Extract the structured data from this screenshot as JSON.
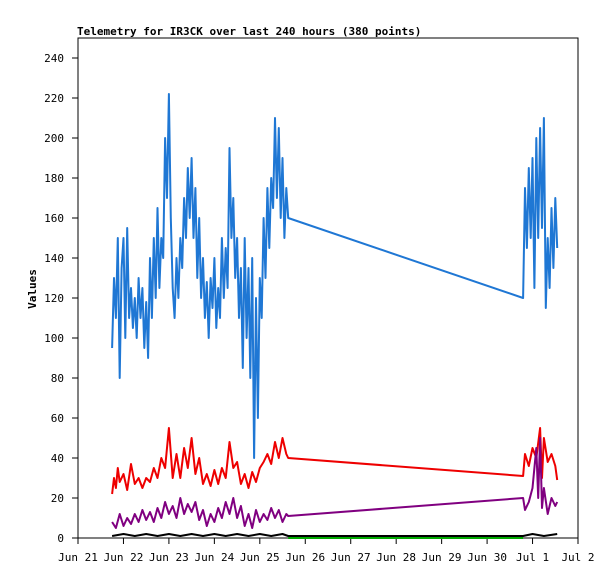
{
  "chart_data": {
    "type": "line",
    "title": "Telemetry for IR3CK over last 240 hours (380 points)",
    "xlabel": "",
    "ylabel": "Values",
    "ylim": [
      0,
      250
    ],
    "yticks": [
      0,
      20,
      40,
      60,
      80,
      100,
      120,
      140,
      160,
      180,
      200,
      220,
      240
    ],
    "xlim": [
      "2023-06-21",
      "2023-07-02"
    ],
    "xticks": [
      "Jun 21",
      "Jun 22",
      "Jun 23",
      "Jun 24",
      "Jun 25",
      "Jun 26",
      "Jun 27",
      "Jun 28",
      "Jun 29",
      "Jun 30",
      "Jul 1",
      "Jul 2"
    ],
    "grid": false,
    "legend": "none",
    "series": [
      {
        "color": "#1f77d4",
        "points": [
          [
            "2023-06-21T18:00",
            95
          ],
          [
            "2023-06-21T19:00",
            130
          ],
          [
            "2023-06-21T20:00",
            110
          ],
          [
            "2023-06-21T21:00",
            150
          ],
          [
            "2023-06-21T22:00",
            80
          ],
          [
            "2023-06-21T23:00",
            135
          ],
          [
            "2023-06-22T00:00",
            150
          ],
          [
            "2023-06-22T01:00",
            100
          ],
          [
            "2023-06-22T02:00",
            155
          ],
          [
            "2023-06-22T03:00",
            110
          ],
          [
            "2023-06-22T04:00",
            125
          ],
          [
            "2023-06-22T05:00",
            105
          ],
          [
            "2023-06-22T06:00",
            120
          ],
          [
            "2023-06-22T07:00",
            100
          ],
          [
            "2023-06-22T08:00",
            130
          ],
          [
            "2023-06-22T09:00",
            110
          ],
          [
            "2023-06-22T10:00",
            125
          ],
          [
            "2023-06-22T11:00",
            95
          ],
          [
            "2023-06-22T12:00",
            118
          ],
          [
            "2023-06-22T13:00",
            90
          ],
          [
            "2023-06-22T14:00",
            140
          ],
          [
            "2023-06-22T15:00",
            110
          ],
          [
            "2023-06-22T16:00",
            150
          ],
          [
            "2023-06-22T17:00",
            120
          ],
          [
            "2023-06-22T18:00",
            165
          ],
          [
            "2023-06-22T19:00",
            125
          ],
          [
            "2023-06-22T20:00",
            150
          ],
          [
            "2023-06-22T21:00",
            140
          ],
          [
            "2023-06-22T22:00",
            200
          ],
          [
            "2023-06-22T23:00",
            170
          ],
          [
            "2023-06-23T00:00",
            222
          ],
          [
            "2023-06-23T01:00",
            160
          ],
          [
            "2023-06-23T02:00",
            125
          ],
          [
            "2023-06-23T03:00",
            110
          ],
          [
            "2023-06-23T04:00",
            140
          ],
          [
            "2023-06-23T05:00",
            120
          ],
          [
            "2023-06-23T06:00",
            150
          ],
          [
            "2023-06-23T07:00",
            135
          ],
          [
            "2023-06-23T08:00",
            170
          ],
          [
            "2023-06-23T09:00",
            150
          ],
          [
            "2023-06-23T10:00",
            185
          ],
          [
            "2023-06-23T11:00",
            160
          ],
          [
            "2023-06-23T12:00",
            190
          ],
          [
            "2023-06-23T13:00",
            150
          ],
          [
            "2023-06-23T14:00",
            175
          ],
          [
            "2023-06-23T15:00",
            130
          ],
          [
            "2023-06-23T16:00",
            160
          ],
          [
            "2023-06-23T17:00",
            120
          ],
          [
            "2023-06-23T18:00",
            140
          ],
          [
            "2023-06-23T19:00",
            110
          ],
          [
            "2023-06-23T20:00",
            128
          ],
          [
            "2023-06-23T21:00",
            100
          ],
          [
            "2023-06-23T22:00",
            130
          ],
          [
            "2023-06-23T23:00",
            115
          ],
          [
            "2023-06-24T00:00",
            140
          ],
          [
            "2023-06-24T01:00",
            105
          ],
          [
            "2023-06-24T02:00",
            125
          ],
          [
            "2023-06-24T03:00",
            110
          ],
          [
            "2023-06-24T04:00",
            150
          ],
          [
            "2023-06-24T05:00",
            120
          ],
          [
            "2023-06-24T06:00",
            145
          ],
          [
            "2023-06-24T07:00",
            125
          ],
          [
            "2023-06-24T08:00",
            195
          ],
          [
            "2023-06-24T09:00",
            150
          ],
          [
            "2023-06-24T10:00",
            170
          ],
          [
            "2023-06-24T11:00",
            130
          ],
          [
            "2023-06-24T12:00",
            150
          ],
          [
            "2023-06-24T13:00",
            110
          ],
          [
            "2023-06-24T14:00",
            135
          ],
          [
            "2023-06-24T15:00",
            85
          ],
          [
            "2023-06-24T16:00",
            150
          ],
          [
            "2023-06-24T17:00",
            100
          ],
          [
            "2023-06-24T18:00",
            135
          ],
          [
            "2023-06-24T19:00",
            80
          ],
          [
            "2023-06-24T20:00",
            140
          ],
          [
            "2023-06-24T21:00",
            40
          ],
          [
            "2023-06-24T22:00",
            120
          ],
          [
            "2023-06-24T23:00",
            60
          ],
          [
            "2023-06-25T00:00",
            130
          ],
          [
            "2023-06-25T01:00",
            110
          ],
          [
            "2023-06-25T02:00",
            160
          ],
          [
            "2023-06-25T03:00",
            130
          ],
          [
            "2023-06-25T04:00",
            175
          ],
          [
            "2023-06-25T05:00",
            145
          ],
          [
            "2023-06-25T06:00",
            180
          ],
          [
            "2023-06-25T07:00",
            165
          ],
          [
            "2023-06-25T08:00",
            210
          ],
          [
            "2023-06-25T09:00",
            170
          ],
          [
            "2023-06-25T10:00",
            205
          ],
          [
            "2023-06-25T11:00",
            160
          ],
          [
            "2023-06-25T12:00",
            190
          ],
          [
            "2023-06-25T13:00",
            150
          ],
          [
            "2023-06-25T14:00",
            175
          ],
          [
            "2023-06-25T15:00",
            160
          ],
          [
            "2023-06-30T19:00",
            120
          ],
          [
            "2023-06-30T20:00",
            175
          ],
          [
            "2023-06-30T21:00",
            145
          ],
          [
            "2023-06-30T22:00",
            185
          ],
          [
            "2023-06-30T23:00",
            150
          ],
          [
            "2023-07-01T00:00",
            190
          ],
          [
            "2023-07-01T01:00",
            125
          ],
          [
            "2023-07-01T02:00",
            200
          ],
          [
            "2023-07-01T03:00",
            150
          ],
          [
            "2023-07-01T04:00",
            205
          ],
          [
            "2023-07-01T05:00",
            155
          ],
          [
            "2023-07-01T06:00",
            210
          ],
          [
            "2023-07-01T07:00",
            115
          ],
          [
            "2023-07-01T08:00",
            150
          ],
          [
            "2023-07-01T09:00",
            125
          ],
          [
            "2023-07-01T10:00",
            165
          ],
          [
            "2023-07-01T11:00",
            135
          ],
          [
            "2023-07-01T12:00",
            170
          ],
          [
            "2023-07-01T13:00",
            145
          ]
        ]
      },
      {
        "color": "#ee0000",
        "points": [
          [
            "2023-06-21T18:00",
            22
          ],
          [
            "2023-06-21T19:00",
            30
          ],
          [
            "2023-06-21T20:00",
            25
          ],
          [
            "2023-06-21T21:00",
            35
          ],
          [
            "2023-06-21T22:00",
            28
          ],
          [
            "2023-06-22T00:00",
            32
          ],
          [
            "2023-06-22T02:00",
            24
          ],
          [
            "2023-06-22T04:00",
            37
          ],
          [
            "2023-06-22T06:00",
            27
          ],
          [
            "2023-06-22T08:00",
            30
          ],
          [
            "2023-06-22T10:00",
            25
          ],
          [
            "2023-06-22T12:00",
            30
          ],
          [
            "2023-06-22T14:00",
            28
          ],
          [
            "2023-06-22T16:00",
            35
          ],
          [
            "2023-06-22T18:00",
            30
          ],
          [
            "2023-06-22T20:00",
            40
          ],
          [
            "2023-06-22T22:00",
            35
          ],
          [
            "2023-06-23T00:00",
            55
          ],
          [
            "2023-06-23T02:00",
            30
          ],
          [
            "2023-06-23T04:00",
            42
          ],
          [
            "2023-06-23T06:00",
            30
          ],
          [
            "2023-06-23T08:00",
            45
          ],
          [
            "2023-06-23T10:00",
            35
          ],
          [
            "2023-06-23T12:00",
            50
          ],
          [
            "2023-06-23T14:00",
            32
          ],
          [
            "2023-06-23T16:00",
            40
          ],
          [
            "2023-06-23T18:00",
            27
          ],
          [
            "2023-06-23T20:00",
            32
          ],
          [
            "2023-06-23T22:00",
            26
          ],
          [
            "2023-06-24T00:00",
            34
          ],
          [
            "2023-06-24T02:00",
            27
          ],
          [
            "2023-06-24T04:00",
            35
          ],
          [
            "2023-06-24T06:00",
            30
          ],
          [
            "2023-06-24T08:00",
            48
          ],
          [
            "2023-06-24T10:00",
            35
          ],
          [
            "2023-06-24T12:00",
            38
          ],
          [
            "2023-06-24T14:00",
            27
          ],
          [
            "2023-06-24T16:00",
            32
          ],
          [
            "2023-06-24T18:00",
            25
          ],
          [
            "2023-06-24T20:00",
            33
          ],
          [
            "2023-06-24T22:00",
            28
          ],
          [
            "2023-06-25T00:00",
            35
          ],
          [
            "2023-06-25T02:00",
            38
          ],
          [
            "2023-06-25T04:00",
            42
          ],
          [
            "2023-06-25T06:00",
            37
          ],
          [
            "2023-06-25T08:00",
            48
          ],
          [
            "2023-06-25T10:00",
            40
          ],
          [
            "2023-06-25T12:00",
            50
          ],
          [
            "2023-06-25T14:00",
            42
          ],
          [
            "2023-06-25T15:00",
            40
          ],
          [
            "2023-06-30T19:00",
            31
          ],
          [
            "2023-06-30T20:00",
            42
          ],
          [
            "2023-06-30T22:00",
            36
          ],
          [
            "2023-07-01T00:00",
            45
          ],
          [
            "2023-07-01T02:00",
            40
          ],
          [
            "2023-07-01T04:00",
            55
          ],
          [
            "2023-07-01T05:00",
            30
          ],
          [
            "2023-07-01T06:00",
            50
          ],
          [
            "2023-07-01T08:00",
            38
          ],
          [
            "2023-07-01T10:00",
            42
          ],
          [
            "2023-07-01T12:00",
            36
          ],
          [
            "2023-07-01T13:00",
            29
          ]
        ]
      },
      {
        "color": "#800080",
        "points": [
          [
            "2023-06-21T18:00",
            8
          ],
          [
            "2023-06-21T20:00",
            5
          ],
          [
            "2023-06-21T22:00",
            12
          ],
          [
            "2023-06-22T00:00",
            6
          ],
          [
            "2023-06-22T02:00",
            10
          ],
          [
            "2023-06-22T04:00",
            7
          ],
          [
            "2023-06-22T06:00",
            12
          ],
          [
            "2023-06-22T08:00",
            8
          ],
          [
            "2023-06-22T10:00",
            14
          ],
          [
            "2023-06-22T12:00",
            9
          ],
          [
            "2023-06-22T14:00",
            13
          ],
          [
            "2023-06-22T16:00",
            8
          ],
          [
            "2023-06-22T18:00",
            15
          ],
          [
            "2023-06-22T20:00",
            10
          ],
          [
            "2023-06-22T22:00",
            18
          ],
          [
            "2023-06-23T00:00",
            12
          ],
          [
            "2023-06-23T02:00",
            16
          ],
          [
            "2023-06-23T04:00",
            10
          ],
          [
            "2023-06-23T06:00",
            20
          ],
          [
            "2023-06-23T08:00",
            12
          ],
          [
            "2023-06-23T10:00",
            17
          ],
          [
            "2023-06-23T12:00",
            13
          ],
          [
            "2023-06-23T14:00",
            18
          ],
          [
            "2023-06-23T16:00",
            9
          ],
          [
            "2023-06-23T18:00",
            14
          ],
          [
            "2023-06-23T20:00",
            6
          ],
          [
            "2023-06-23T22:00",
            12
          ],
          [
            "2023-06-24T00:00",
            8
          ],
          [
            "2023-06-24T02:00",
            15
          ],
          [
            "2023-06-24T04:00",
            10
          ],
          [
            "2023-06-24T06:00",
            18
          ],
          [
            "2023-06-24T08:00",
            12
          ],
          [
            "2023-06-24T10:00",
            20
          ],
          [
            "2023-06-24T12:00",
            10
          ],
          [
            "2023-06-24T14:00",
            16
          ],
          [
            "2023-06-24T16:00",
            6
          ],
          [
            "2023-06-24T18:00",
            12
          ],
          [
            "2023-06-24T20:00",
            5
          ],
          [
            "2023-06-24T22:00",
            14
          ],
          [
            "2023-06-25T00:00",
            8
          ],
          [
            "2023-06-25T02:00",
            12
          ],
          [
            "2023-06-25T04:00",
            9
          ],
          [
            "2023-06-25T06:00",
            15
          ],
          [
            "2023-06-25T08:00",
            10
          ],
          [
            "2023-06-25T10:00",
            14
          ],
          [
            "2023-06-25T12:00",
            8
          ],
          [
            "2023-06-25T14:00",
            12
          ],
          [
            "2023-06-25T15:00",
            11
          ],
          [
            "2023-06-30T19:00",
            20
          ],
          [
            "2023-06-30T20:00",
            14
          ],
          [
            "2023-06-30T22:00",
            18
          ],
          [
            "2023-07-01T00:00",
            25
          ],
          [
            "2023-07-01T02:00",
            45
          ],
          [
            "2023-07-01T03:00",
            20
          ],
          [
            "2023-07-01T04:00",
            50
          ],
          [
            "2023-07-01T05:00",
            15
          ],
          [
            "2023-07-01T06:00",
            25
          ],
          [
            "2023-07-01T08:00",
            12
          ],
          [
            "2023-07-01T10:00",
            20
          ],
          [
            "2023-07-01T12:00",
            16
          ],
          [
            "2023-07-01T13:00",
            18
          ]
        ]
      },
      {
        "color": "#000000",
        "points": [
          [
            "2023-06-21T18:00",
            1
          ],
          [
            "2023-06-22T00:00",
            2
          ],
          [
            "2023-06-22T06:00",
            1
          ],
          [
            "2023-06-22T12:00",
            2
          ],
          [
            "2023-06-22T18:00",
            1
          ],
          [
            "2023-06-23T00:00",
            2
          ],
          [
            "2023-06-23T06:00",
            1
          ],
          [
            "2023-06-23T12:00",
            2
          ],
          [
            "2023-06-23T18:00",
            1
          ],
          [
            "2023-06-24T00:00",
            2
          ],
          [
            "2023-06-24T06:00",
            1
          ],
          [
            "2023-06-24T12:00",
            2
          ],
          [
            "2023-06-24T18:00",
            1
          ],
          [
            "2023-06-25T00:00",
            2
          ],
          [
            "2023-06-25T06:00",
            1
          ],
          [
            "2023-06-25T12:00",
            2
          ],
          [
            "2023-06-25T15:00",
            1
          ],
          [
            "2023-06-30T19:00",
            1
          ],
          [
            "2023-07-01T00:00",
            2
          ],
          [
            "2023-07-01T06:00",
            1
          ],
          [
            "2023-07-01T13:00",
            2
          ]
        ]
      },
      {
        "color": "#00aa00",
        "points": [
          [
            "2023-06-25T15:00",
            0
          ],
          [
            "2023-06-30T19:00",
            0
          ]
        ]
      }
    ]
  }
}
